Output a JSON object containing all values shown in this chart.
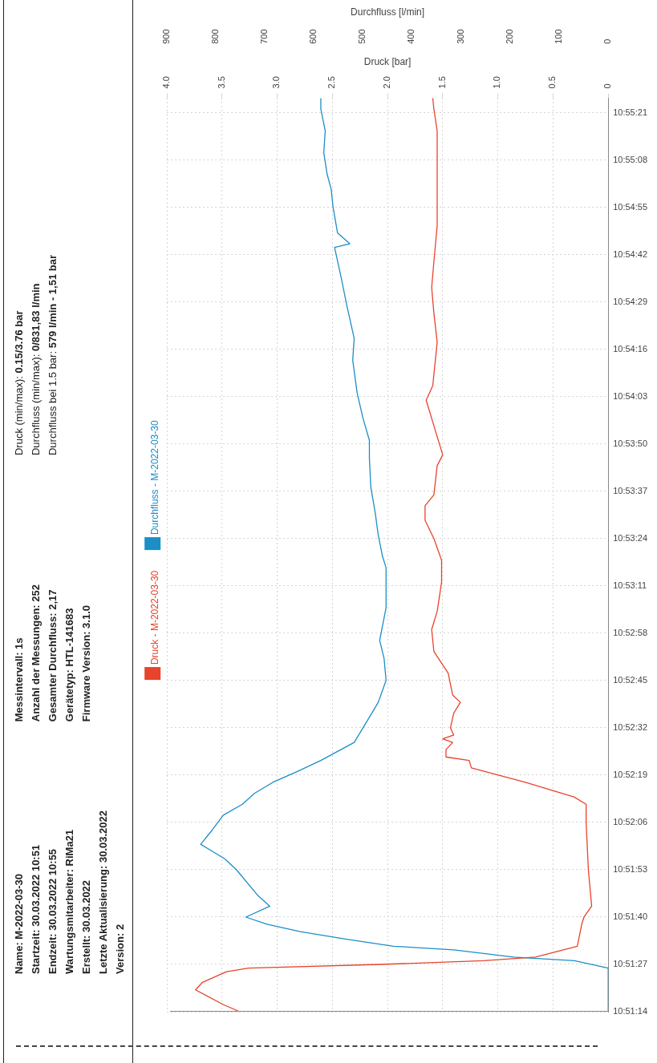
{
  "chart_data": {
    "type": "line",
    "orientation": "horizontal",
    "annotations": [
      "Name: M-2022-03-30",
      "Startzeit: 30.03.2022 10:51",
      "Endzeit: 30.03.2022 10:55",
      "Wartungsmitarbeiter: RiMa21",
      "Erstellt: 30.03.2022",
      "Letzte Aktualisierung: 30.03.2022",
      "Version: 2",
      "Messintervall: 1s",
      "Anzahl der Messungen: 252",
      "Gesamter Durchfluss: 2,17",
      "Gerätetyp: HTL-141683",
      "Firmware Version: 3.1.0",
      "Druck (min/max): 0.15/3.76 bar",
      "Durchfluss (min/max): 0/831,83 l/min",
      "Durchfluss bei 1.5 bar: 579 l/min - 1,51 bar"
    ],
    "xlabel": "Druck [bar]",
    "x2label": "Durchfluss [l/min]",
    "ylim": [
      10.85389,
      10.92361
    ],
    "yticks": [
      {
        "value": 10.85389,
        "label": "10:51:14"
      },
      {
        "value": 10.8575,
        "label": "10:51:27"
      },
      {
        "value": 10.86111,
        "label": "10:51:40"
      },
      {
        "value": 10.86472,
        "label": "10:51:53"
      },
      {
        "value": 10.86833,
        "label": "10:52:06"
      },
      {
        "value": 10.87194,
        "label": "10:52:19"
      },
      {
        "value": 10.87556,
        "label": "10:52:32"
      },
      {
        "value": 10.87917,
        "label": "10:52:45"
      },
      {
        "value": 10.88278,
        "label": "10:52:58"
      },
      {
        "value": 10.88639,
        "label": "10:53:11"
      },
      {
        "value": 10.89,
        "label": "10:53:24"
      },
      {
        "value": 10.89361,
        "label": "10:53:37"
      },
      {
        "value": 10.89722,
        "label": "10:53:50"
      },
      {
        "value": 10.90083,
        "label": "10:54:03"
      },
      {
        "value": 10.90444,
        "label": "10:54:16"
      },
      {
        "value": 10.90806,
        "label": "10:54:29"
      },
      {
        "value": 10.91167,
        "label": "10:54:42"
      },
      {
        "value": 10.91528,
        "label": "10:54:55"
      },
      {
        "value": 10.91889,
        "label": "10:55:08"
      },
      {
        "value": 10.9225,
        "label": "10:55:21"
      }
    ],
    "xlim": [
      4,
      0
    ],
    "xticks": [
      {
        "value": 4,
        "label": "4.0"
      },
      3.5,
      {
        "value": 3,
        "label": "3.0"
      },
      2.5,
      {
        "value": 2,
        "label": "2.0"
      },
      1.5,
      {
        "value": 1,
        "label": "1.0"
      },
      0.5,
      0
    ],
    "x2lim": [
      900,
      0
    ],
    "x2ticks": [
      900,
      800,
      700,
      600,
      500,
      400,
      300,
      200,
      100,
      0
    ],
    "grid": true,
    "legend": "left",
    "series": [
      {
        "name": "Druck - M-2022-03-30",
        "color": "#e8432b",
        "x": [
          10.85389,
          10.85444,
          10.85556,
          10.85611,
          10.85694,
          10.85722,
          10.8575,
          10.85778,
          10.85806,
          10.85889,
          10.86056,
          10.86111,
          10.86194,
          10.86472,
          10.86833,
          10.86972,
          10.87028,
          10.87139,
          10.8725,
          10.87306,
          10.87333,
          10.87389,
          10.87444,
          10.87472,
          10.875,
          10.87556,
          10.87667,
          10.8775,
          10.87806,
          10.87972,
          10.88139,
          10.88306,
          10.88444,
          10.88667,
          10.88833,
          10.89,
          10.89139,
          10.8925,
          10.89333,
          10.89556,
          10.89639,
          10.89778,
          10.90056,
          10.90167,
          10.905,
          10.90722,
          10.90917,
          10.91111,
          10.91389,
          10.91667,
          10.91944,
          10.92111,
          10.92278,
          10.92361
        ],
        "values": [
          3.34,
          3.49,
          3.74,
          3.68,
          3.46,
          3.26,
          2.06,
          1.13,
          0.66,
          0.28,
          0.24,
          0.22,
          0.15,
          0.18,
          0.2,
          0.2,
          0.31,
          0.75,
          1.24,
          1.26,
          1.47,
          1.47,
          1.41,
          1.5,
          1.4,
          1.43,
          1.4,
          1.34,
          1.41,
          1.45,
          1.58,
          1.6,
          1.55,
          1.51,
          1.51,
          1.58,
          1.66,
          1.66,
          1.58,
          1.55,
          1.5,
          1.55,
          1.65,
          1.59,
          1.55,
          1.58,
          1.6,
          1.58,
          1.55,
          1.55,
          1.55,
          1.55,
          1.58,
          1.59
        ]
      },
      {
        "name": "Durchfluss - M-2022-03-30",
        "color": "#1b8ec6",
        "axis": "x2",
        "x": [
          10.85389,
          10.85722,
          10.85778,
          10.85806,
          10.85861,
          10.85889,
          10.85944,
          10.86,
          10.86056,
          10.86111,
          10.86194,
          10.86278,
          10.86472,
          10.86556,
          10.86667,
          10.86778,
          10.86889,
          10.86972,
          10.87056,
          10.87139,
          10.87222,
          10.87306,
          10.87444,
          10.87556,
          10.87667,
          10.8775,
          10.87917,
          10.88083,
          10.88222,
          10.88472,
          10.88778,
          10.88861,
          10.89028,
          10.89194,
          10.89389,
          10.89611,
          10.8975,
          10.89917,
          10.90111,
          10.90361,
          10.90528,
          10.90778,
          10.91,
          10.91222,
          10.9125,
          10.91333,
          10.91528,
          10.91667,
          10.91778,
          10.91944,
          10.92111,
          10.92278,
          10.92361
        ],
        "values": [
          0,
          0,
          69,
          193,
          315,
          438,
          536,
          628,
          696,
          739,
          690,
          715,
          758,
          782,
          831,
          807,
          785,
          746,
          721,
          684,
          634,
          586,
          518,
          500,
          482,
          469,
          453,
          457,
          466,
          453,
          453,
          460,
          469,
          475,
          484,
          487,
          487,
          500,
          512,
          521,
          518,
          533,
          545,
          558,
          527,
          552,
          561,
          565,
          573,
          580,
          577,
          586,
          586
        ]
      }
    ]
  }
}
